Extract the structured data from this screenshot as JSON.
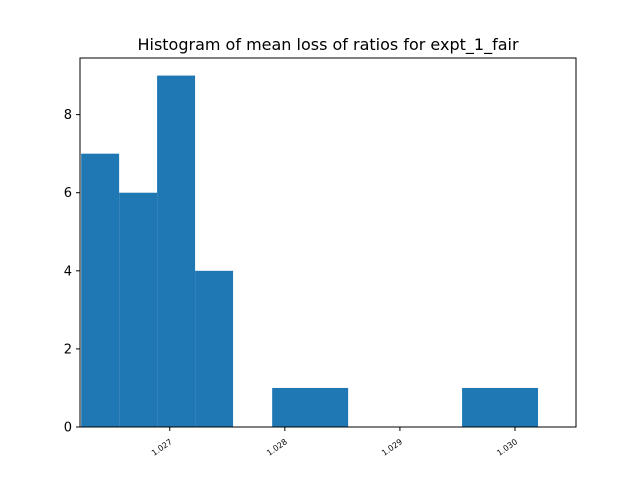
{
  "chart_data": {
    "type": "bar",
    "title": "Histogram of mean loss of ratios for expt_1_fair",
    "xlabel": "",
    "ylabel": "",
    "bin_edges": [
      1.02623,
      1.02656,
      1.02689,
      1.02722,
      1.02755,
      1.02789,
      1.02822,
      1.02855,
      1.02888,
      1.02921,
      1.02954,
      1.02987,
      1.0302,
      1.03053
    ],
    "counts": [
      7,
      6,
      9,
      4,
      0,
      1,
      1,
      0,
      0,
      1,
      1,
      0,
      0
    ],
    "bars": [
      {
        "x0": 1.02623,
        "x1": 1.02656,
        "value": 7
      },
      {
        "x0": 1.02656,
        "x1": 1.02689,
        "value": 6
      },
      {
        "x0": 1.02689,
        "x1": 1.02722,
        "value": 9
      },
      {
        "x0": 1.02722,
        "x1": 1.02755,
        "value": 4
      },
      {
        "x0": 1.02789,
        "x1": 1.02855,
        "value": 1
      },
      {
        "x0": 1.02954,
        "x1": 1.0302,
        "value": 1
      }
    ],
    "xlim": [
      1.02622,
      1.03053
    ],
    "ylim": [
      0,
      9.45
    ],
    "xticks": [
      1.027,
      1.028,
      1.029,
      1.03
    ],
    "xtick_labels": [
      "1.027",
      "1.028",
      "1.029",
      "1.030"
    ],
    "yticks": [
      0,
      2,
      4,
      6,
      8
    ],
    "ytick_labels": [
      "0",
      "2",
      "4",
      "6",
      "8"
    ],
    "bar_color": "#1f77b4",
    "grid": false,
    "legend": "none"
  }
}
